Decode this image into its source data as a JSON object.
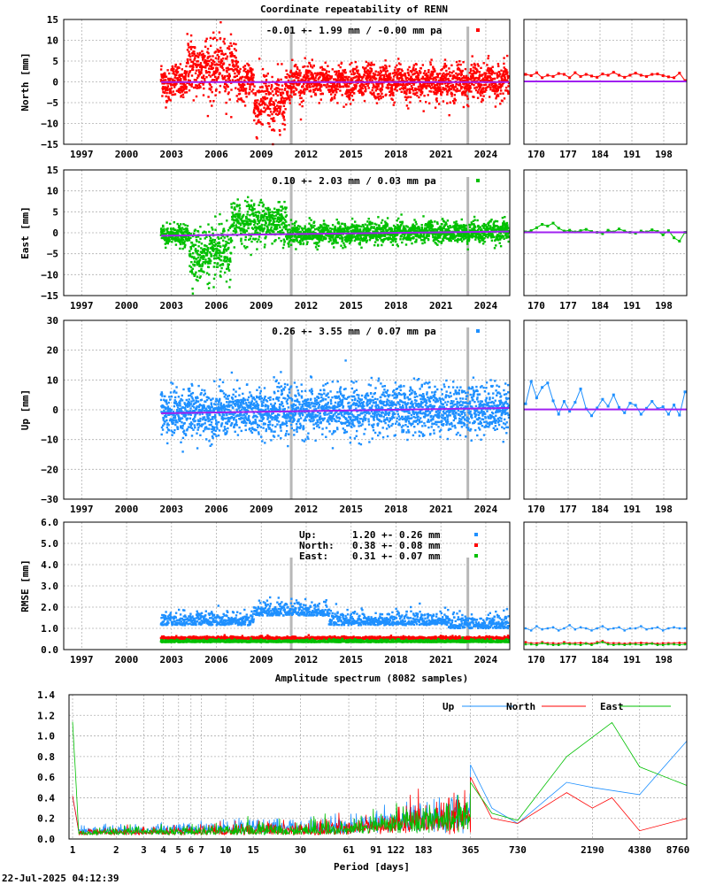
{
  "title": "Coordinate repeatability of RENN",
  "timestamp": "22-Jul-2025 04:12:39",
  "colors": {
    "north": "#ff0000",
    "east": "#00c000",
    "up": "#1e90ff",
    "trend": "#a020f0",
    "step": "#b8b8b8"
  },
  "chart_data": [
    {
      "type": "scatter",
      "name": "north",
      "ylabel": "North [mm]",
      "ylim": [
        -15,
        15
      ],
      "yticks": [
        "15",
        "10",
        "5",
        "0",
        "−5",
        "−10",
        "−15"
      ],
      "xlabel": "",
      "x_ticks": [
        "1997",
        "2000",
        "2003",
        "2006",
        "2009",
        "2012",
        "2015",
        "2018",
        "2021",
        "2024"
      ],
      "stats": "-0.01 +- 1.99 mm / -0.00 mm pa",
      "data_start": 2002.3,
      "data_end": 2025.55,
      "scatter_sd": 2.0,
      "disturbed": [
        {
          "from": 2004.0,
          "to": 2007.4,
          "offset": 3.5,
          "sd": 3.5
        },
        {
          "from": 2008.5,
          "to": 2010.6,
          "offset": -5,
          "sd": 3.5
        }
      ],
      "trend": [
        [
          2002.3,
          -0.05
        ],
        [
          2025.55,
          -0.05
        ]
      ],
      "steps": [
        2011.0,
        2022.8
      ],
      "zoom_x_ticks": [
        "170",
        "177",
        "184",
        "191",
        "198"
      ],
      "zoom": [
        1.8,
        1.5,
        2.2,
        1.0,
        1.6,
        1.3,
        2.0,
        1.8,
        1.0,
        2.2,
        1.3,
        1.8,
        1.4,
        1.1,
        1.9,
        1.6,
        2.3,
        1.6,
        1.1,
        1.6,
        2.1,
        1.6,
        1.3,
        1.8,
        1.9,
        1.5,
        1.2,
        1.0,
        2.1,
        0.3
      ]
    },
    {
      "type": "scatter",
      "name": "east",
      "ylabel": "East [mm]",
      "ylim": [
        -15,
        15
      ],
      "yticks": [
        "15",
        "10",
        "5",
        "0",
        "−5",
        "−10",
        "−15"
      ],
      "xlabel": "",
      "x_ticks": [
        "1997",
        "2000",
        "2003",
        "2006",
        "2009",
        "2012",
        "2015",
        "2018",
        "2021",
        "2024"
      ],
      "stats": "0.10 +- 2.03 mm /  0.03 mm pa",
      "data_start": 2002.3,
      "data_end": 2025.55,
      "scatter_sd": 1.2,
      "disturbed": [
        {
          "from": 2004.2,
          "to": 2007.0,
          "offset": -4.5,
          "sd": 3.2
        },
        {
          "from": 2007.0,
          "to": 2010.7,
          "offset": 3,
          "sd": 2.5
        }
      ],
      "trend": [
        [
          2002.3,
          -0.7
        ],
        [
          2025.55,
          0.3
        ]
      ],
      "steps": [
        2011.0,
        2022.8
      ],
      "zoom_x_ticks": [
        "170",
        "177",
        "184",
        "191",
        "198"
      ],
      "zoom": [
        0.2,
        0.5,
        1.2,
        2.0,
        1.6,
        2.3,
        1.1,
        0.4,
        0.6,
        0.2,
        0.5,
        0.8,
        0.3,
        0.1,
        -0.2,
        0.6,
        0.2,
        0.9,
        0.4,
        0.1,
        -0.1,
        0.4,
        0.2,
        0.7,
        0.3,
        -0.5,
        0.5,
        -1.2,
        -2.0,
        0.1
      ]
    },
    {
      "type": "scatter",
      "name": "up",
      "ylabel": "Up [mm]",
      "ylim": [
        -30,
        30
      ],
      "yticks": [
        "30",
        "20",
        "10",
        "0",
        "−10",
        "−20",
        "−30"
      ],
      "xlabel": "",
      "x_ticks": [
        "1997",
        "2000",
        "2003",
        "2006",
        "2009",
        "2012",
        "2015",
        "2018",
        "2021",
        "2024"
      ],
      "stats": "0.26 +- 3.55 mm /  0.07 mm pa",
      "data_start": 2002.3,
      "data_end": 2025.55,
      "scatter_sd": 4.0,
      "disturbed": [],
      "trend": [
        [
          2002.3,
          -1.2
        ],
        [
          2025.55,
          0.6
        ]
      ],
      "steps": [
        2011.0,
        2022.8
      ],
      "zoom_x_ticks": [
        "170",
        "177",
        "184",
        "191",
        "198"
      ],
      "zoom": [
        2.0,
        9.5,
        4.0,
        7.5,
        9.0,
        3.0,
        -1.5,
        2.8,
        -0.5,
        2.5,
        7.0,
        0.3,
        -2.0,
        0.6,
        3.5,
        1.2,
        5.0,
        0.8,
        -1.0,
        2.2,
        1.5,
        -1.5,
        0.5,
        2.8,
        0.4,
        1.0,
        -1.5,
        1.6,
        -1.8,
        6.0
      ]
    },
    {
      "type": "scatter",
      "name": "rmse",
      "ylabel": "RMSE [mm]",
      "ylim": [
        0,
        6
      ],
      "yticks": [
        "6.0",
        "5.0",
        "4.0",
        "3.0",
        "2.0",
        "1.0",
        "0.0"
      ],
      "xlabel": "",
      "x_ticks": [
        "1997",
        "2000",
        "2003",
        "2006",
        "2009",
        "2012",
        "2015",
        "2018",
        "2021",
        "2024"
      ],
      "legend": [
        {
          "label": "Up:",
          "value": "1.20 +- 0.26 mm",
          "color": "#1e90ff"
        },
        {
          "label": "North:",
          "value": "0.38 +- 0.08 mm",
          "color": "#ff0000"
        },
        {
          "label": "East:",
          "value": "0.31 +- 0.07 mm",
          "color": "#00c000"
        }
      ],
      "data_start": 2002.3,
      "data_end": 2025.55,
      "steps": [
        2011.0,
        2022.8
      ],
      "zoom_x_ticks": [
        "170",
        "177",
        "184",
        "191",
        "198"
      ],
      "zoom_up": [
        1.0,
        0.9,
        1.1,
        0.95,
        1.0,
        1.05,
        0.9,
        1.0,
        1.15,
        0.95,
        1.05,
        1.0,
        0.9,
        1.0,
        1.1,
        0.95,
        1.0,
        1.05,
        0.9,
        1.0,
        1.0,
        1.1,
        0.95,
        1.0,
        1.05,
        0.9,
        1.0,
        1.05,
        1.0,
        1.0
      ],
      "zoom_north": [
        0.35,
        0.3,
        0.3,
        0.35,
        0.3,
        0.3,
        0.28,
        0.35,
        0.3,
        0.3,
        0.32,
        0.3,
        0.28,
        0.35,
        0.4,
        0.3,
        0.3,
        0.3,
        0.28,
        0.3,
        0.3,
        0.32,
        0.3,
        0.3,
        0.28,
        0.3,
        0.3,
        0.3,
        0.32,
        0.3
      ],
      "zoom_east": [
        0.25,
        0.25,
        0.22,
        0.3,
        0.25,
        0.22,
        0.22,
        0.28,
        0.25,
        0.25,
        0.22,
        0.28,
        0.22,
        0.3,
        0.35,
        0.25,
        0.22,
        0.25,
        0.22,
        0.25,
        0.25,
        0.22,
        0.25,
        0.28,
        0.22,
        0.22,
        0.25,
        0.25,
        0.22,
        0.25
      ]
    },
    {
      "type": "line",
      "name": "spectrum",
      "title": "Amplitude spectrum (8082 samples)",
      "xlabel": "Period [days]",
      "ylim": [
        0,
        1.4
      ],
      "yticks": [
        "1.4",
        "1.2",
        "1.0",
        "0.8",
        "0.6",
        "0.4",
        "0.2",
        "0.0"
      ],
      "x_ticks": [
        "1",
        "2",
        "3",
        "4",
        "5",
        "6",
        "7",
        "10",
        "15",
        "30",
        "61",
        "91",
        "122",
        "183",
        "365",
        "730",
        "2190",
        "4380",
        "8760"
      ],
      "x_tick_values": [
        1,
        2,
        3,
        4,
        5,
        6,
        7,
        10,
        15,
        30,
        61,
        91,
        122,
        183,
        365,
        730,
        2190,
        4380,
        8760
      ],
      "series": [
        {
          "name": "Up",
          "color": "#1e90ff",
          "tail": [
            [
              365,
              0.72
            ],
            [
              500,
              0.3
            ],
            [
              730,
              0.15
            ],
            [
              1500,
              0.55
            ],
            [
              2190,
              0.5
            ],
            [
              4380,
              0.43
            ],
            [
              8760,
              0.95
            ]
          ]
        },
        {
          "name": "North",
          "color": "#ff0000",
          "tail": [
            [
              365,
              0.6
            ],
            [
              500,
              0.2
            ],
            [
              730,
              0.15
            ],
            [
              1500,
              0.45
            ],
            [
              2190,
              0.3
            ],
            [
              2920,
              0.4
            ],
            [
              4380,
              0.08
            ],
            [
              8760,
              0.2
            ]
          ]
        },
        {
          "name": "East",
          "color": "#00c000",
          "tail": [
            [
              365,
              0.55
            ],
            [
              500,
              0.25
            ],
            [
              730,
              0.18
            ],
            [
              1500,
              0.8
            ],
            [
              2920,
              1.13
            ],
            [
              4380,
              0.7
            ],
            [
              8760,
              0.52
            ]
          ]
        }
      ]
    }
  ]
}
